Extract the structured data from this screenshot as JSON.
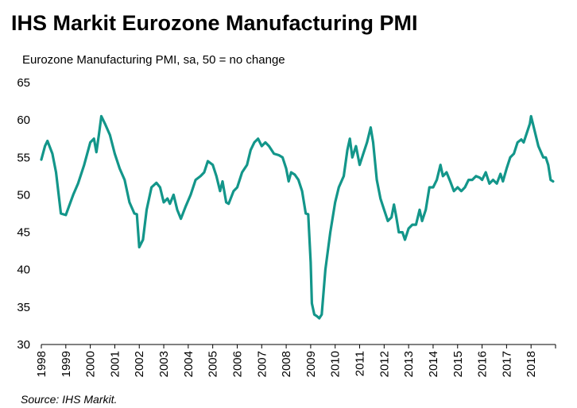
{
  "chart_data": {
    "type": "line",
    "title": "IHS Markit Eurozone Manufacturing PMI",
    "subtitle": "Eurozone Manufacturing PMI, sa, 50 = no change",
    "source": "Source: IHS Markit.",
    "color": "#13968a",
    "xlim": [
      1998,
      2019
    ],
    "xticks": [
      1998,
      1999,
      2000,
      2001,
      2002,
      2003,
      2004,
      2005,
      2006,
      2007,
      2008,
      2009,
      2010,
      2011,
      2012,
      2013,
      2014,
      2015,
      2016,
      2017,
      2018
    ],
    "ylim": [
      30,
      65
    ],
    "yticks": [
      30,
      35,
      40,
      45,
      50,
      55,
      60,
      65
    ],
    "grid": false,
    "x": [
      1998.0,
      1998.15,
      1998.25,
      1998.45,
      1998.6,
      1998.8,
      1999.0,
      1999.3,
      1999.5,
      1999.75,
      2000.0,
      2000.15,
      2000.25,
      2000.35,
      2000.45,
      2000.6,
      2000.8,
      2001.0,
      2001.2,
      2001.4,
      2001.6,
      2001.8,
      2001.9,
      2002.0,
      2002.15,
      2002.3,
      2002.5,
      2002.7,
      2002.85,
      2003.0,
      2003.15,
      2003.25,
      2003.4,
      2003.55,
      2003.7,
      2003.9,
      2004.1,
      2004.3,
      2004.5,
      2004.65,
      2004.8,
      2005.0,
      2005.15,
      2005.3,
      2005.4,
      2005.55,
      2005.65,
      2005.85,
      2006.0,
      2006.2,
      2006.4,
      2006.55,
      2006.7,
      2006.85,
      2007.0,
      2007.15,
      2007.3,
      2007.5,
      2007.7,
      2007.85,
      2008.0,
      2008.1,
      2008.2,
      2008.35,
      2008.5,
      2008.65,
      2008.8,
      2008.9,
      2009.0,
      2009.05,
      2009.15,
      2009.25,
      2009.35,
      2009.45,
      2009.6,
      2009.8,
      2010.0,
      2010.15,
      2010.35,
      2010.5,
      2010.6,
      2010.7,
      2010.85,
      2011.0,
      2011.15,
      2011.3,
      2011.45,
      2011.55,
      2011.7,
      2011.85,
      2012.0,
      2012.15,
      2012.3,
      2012.4,
      2012.5,
      2012.6,
      2012.75,
      2012.85,
      2013.0,
      2013.15,
      2013.3,
      2013.45,
      2013.55,
      2013.7,
      2013.85,
      2014.0,
      2014.15,
      2014.3,
      2014.4,
      2014.55,
      2014.7,
      2014.85,
      2015.0,
      2015.15,
      2015.3,
      2015.45,
      2015.6,
      2015.75,
      2015.9,
      2016.0,
      2016.15,
      2016.3,
      2016.45,
      2016.6,
      2016.75,
      2016.85,
      2017.0,
      2017.15,
      2017.3,
      2017.45,
      2017.6,
      2017.7,
      2017.85,
      2017.95,
      2018.0,
      2018.15,
      2018.3,
      2018.5,
      2018.6,
      2018.7,
      2018.8,
      2018.9
    ],
    "values": [
      54.7,
      56.5,
      57.2,
      55.5,
      53,
      47.5,
      47.3,
      50,
      51.5,
      54,
      57,
      57.5,
      55.7,
      58,
      60.5,
      59.5,
      58,
      55.5,
      53.5,
      52,
      49,
      47.5,
      47.4,
      43,
      44,
      48,
      51,
      51.6,
      51,
      49,
      49.5,
      48.8,
      50,
      48,
      46.8,
      48.5,
      50,
      52,
      52.5,
      53,
      54.5,
      54,
      52.5,
      50.5,
      51.8,
      49,
      48.8,
      50.5,
      51,
      53,
      54,
      56,
      57,
      57.5,
      56.5,
      57,
      56.5,
      55.5,
      55.3,
      55,
      53.5,
      51.8,
      53,
      52.7,
      52,
      50.5,
      47.5,
      47.4,
      41,
      35.5,
      34,
      33.8,
      33.5,
      34,
      40,
      45,
      49,
      51,
      52.5,
      56,
      57.5,
      55,
      56.5,
      54,
      55.5,
      57,
      59,
      57,
      52,
      49.5,
      48,
      46.5,
      47,
      48.7,
      47,
      45,
      45,
      44,
      45.5,
      46,
      46,
      48,
      46.5,
      48,
      51,
      51,
      52,
      54,
      52.5,
      53,
      51.8,
      50.5,
      51,
      50.5,
      51,
      52,
      52,
      52.5,
      52.3,
      52,
      53,
      51.5,
      52,
      51.5,
      52.8,
      51.8,
      53.5,
      55,
      55.5,
      57,
      57.4,
      57,
      58.5,
      59.5,
      60.5,
      58.5,
      56.5,
      55,
      55,
      54,
      52,
      51.8
    ]
  }
}
